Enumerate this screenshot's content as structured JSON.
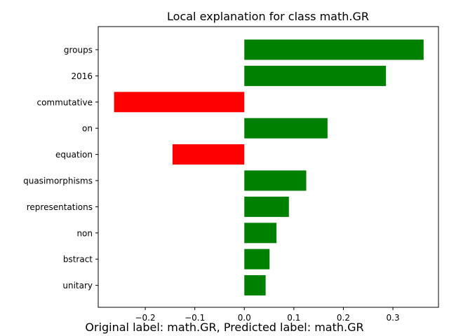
{
  "chart_data": {
    "type": "bar",
    "orientation": "horizontal",
    "title": "Local explanation for class math.GR",
    "xlabel": "",
    "ylabel": "",
    "categories": [
      "groups",
      "2016",
      "commutative",
      "on",
      "equation",
      "quasimorphisms",
      "representations",
      "non",
      "bstract",
      "unitary"
    ],
    "values": [
      0.362,
      0.286,
      -0.263,
      0.168,
      -0.145,
      0.125,
      0.09,
      0.065,
      0.051,
      0.043
    ],
    "xlim": [
      -0.295,
      0.392
    ],
    "xticks": [
      -0.2,
      -0.1,
      0.0,
      0.1,
      0.2,
      0.3
    ],
    "xtick_labels": [
      "−0.2",
      "−0.1",
      "0.0",
      "0.1",
      "0.2",
      "0.3"
    ],
    "positive_color": "#008000",
    "negative_color": "#ff0000",
    "grid": false,
    "legend": "none"
  },
  "caption": "Original label: math.GR, Predicted label: math.GR"
}
